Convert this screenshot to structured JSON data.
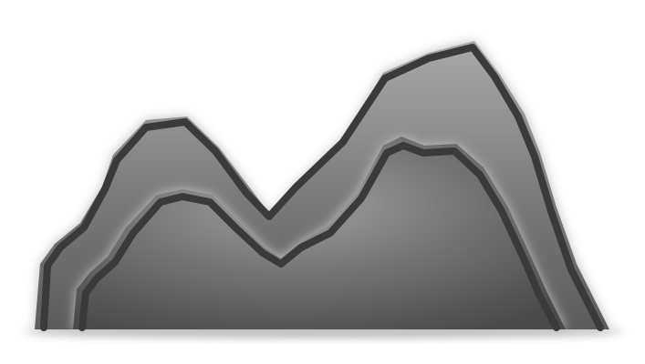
{
  "image": {
    "subject": "mountain-range-icon",
    "palette": {
      "background": "#ffffff",
      "outline": "#3b3b3b",
      "glow": "#bdbdbd",
      "fill_light": "#a8a8a8",
      "fill_dark": "#4a4a4a",
      "ground_shadow": "#9e9e9e"
    }
  }
}
